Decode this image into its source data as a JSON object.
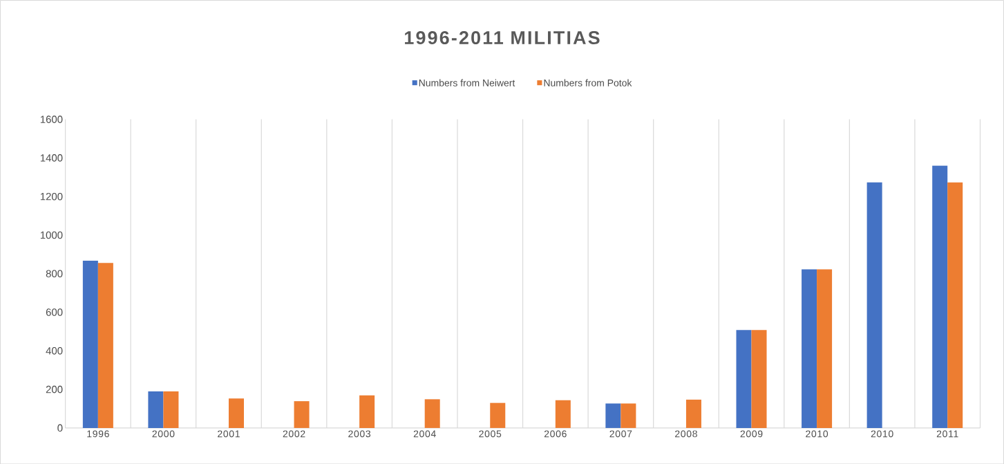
{
  "chart_data": {
    "type": "bar",
    "title": "1996-2011 MILITIAS",
    "categories": [
      "1996",
      "2000",
      "2001",
      "2002",
      "2003",
      "2004",
      "2005",
      "2006",
      "2007",
      "2008",
      "2009",
      "2010",
      "2010",
      "2011"
    ],
    "series": [
      {
        "name": "Numbers from Neiwert",
        "color": "#4472c4",
        "values": [
          867,
          190,
          null,
          null,
          null,
          null,
          null,
          null,
          127,
          null,
          508,
          822,
          1273,
          1360
        ]
      },
      {
        "name": "Numbers from Potok",
        "color": "#ed7d31",
        "values": [
          856,
          190,
          153,
          139,
          169,
          149,
          130,
          144,
          127,
          147,
          508,
          822,
          null,
          1273
        ]
      }
    ],
    "ylim": [
      0,
      1600
    ],
    "yticks": [
      0,
      200,
      400,
      600,
      800,
      1000,
      1200,
      1400,
      1600
    ],
    "grid": "x",
    "legend": "top"
  }
}
